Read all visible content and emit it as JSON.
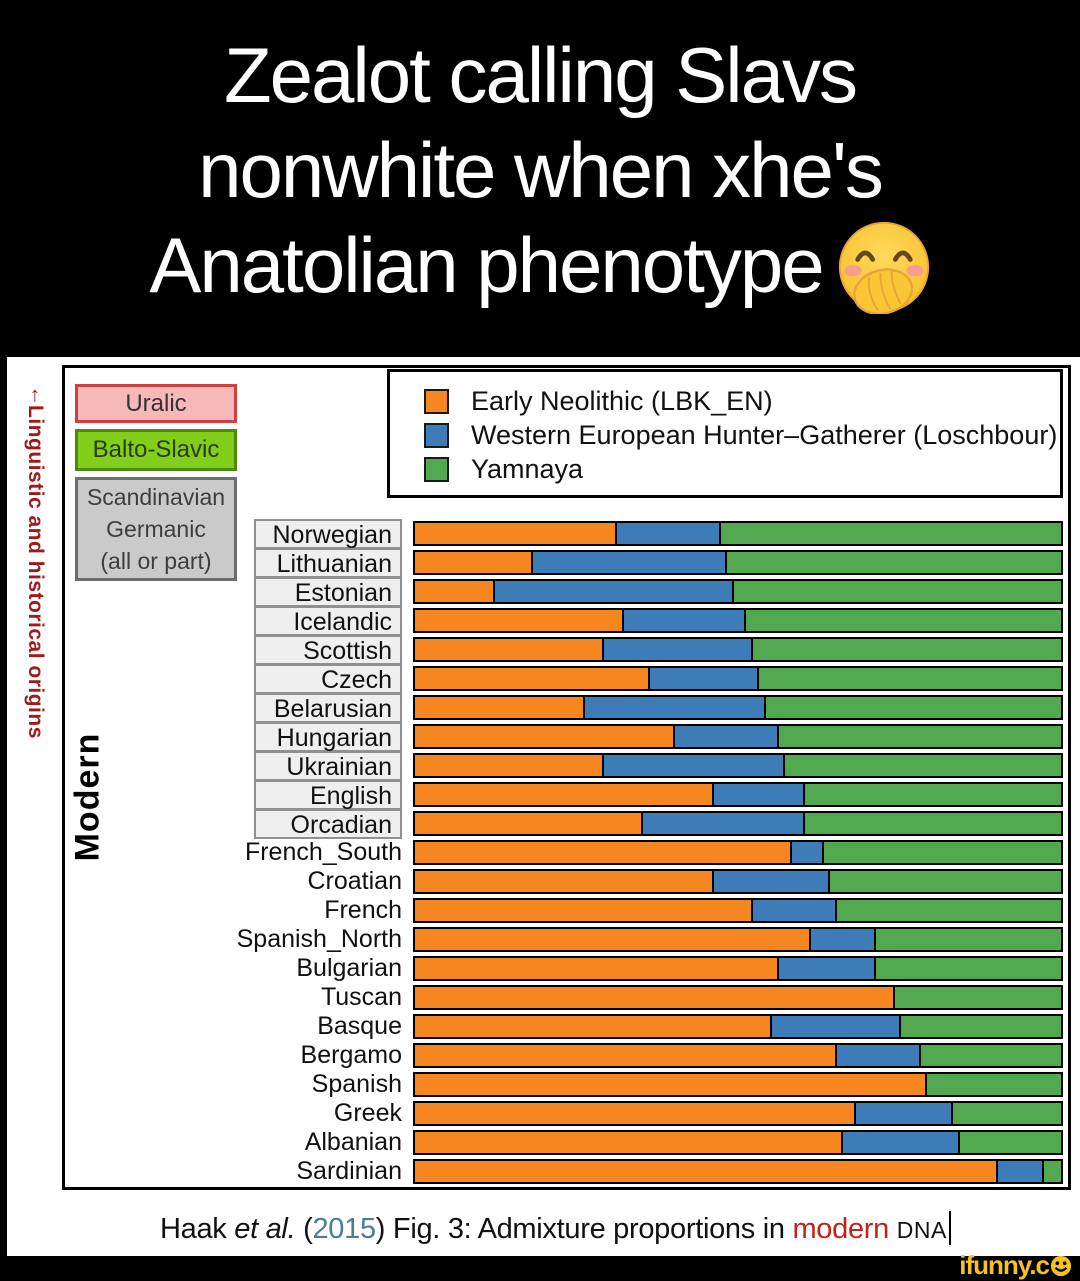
{
  "title": {
    "lines": [
      "Zealot calling Slavs",
      "nonwhite when xhe's",
      "Anatolian phenotype"
    ],
    "emoji": "face-with-hand-over-mouth"
  },
  "figure": {
    "side_label_arrow": "↑",
    "side_label": "Linguistic and historical origins",
    "era_label": "Modern",
    "category_boxes": [
      {
        "label": "Uralic"
      },
      {
        "label": "Balto-Slavic"
      },
      {
        "lines": [
          "Scandinavian",
          "Germanic",
          "(all or part)"
        ]
      }
    ],
    "legend": [
      {
        "label": "Early Neolithic (LBK_EN)",
        "color": "#F6861F"
      },
      {
        "label": "Western European Hunter–Gatherer (Loschbour)",
        "color": "#3E7CB8"
      },
      {
        "label": "Yamnaya",
        "color": "#52A84F"
      }
    ]
  },
  "chart_data": {
    "type": "bar",
    "orientation": "horizontal",
    "stacked": true,
    "xlim": [
      0,
      100
    ],
    "unit": "ancestry proportion (%)",
    "legend_position": "top-right",
    "categories": [
      "Norwegian",
      "Lithuanian",
      "Estonian",
      "Icelandic",
      "Scottish",
      "Czech",
      "Belarusian",
      "Hungarian",
      "Ukrainian",
      "English",
      "Orcadian",
      "French_South",
      "Croatian",
      "French",
      "Spanish_North",
      "Bulgarian",
      "Tuscan",
      "Basque",
      "Bergamo",
      "Spanish",
      "Greek",
      "Albanian",
      "Sardinian"
    ],
    "category_box_colors": [
      "gray",
      "green",
      "pink",
      "gray",
      "gray",
      "green",
      "green",
      "pink",
      "green",
      "gray",
      "gray",
      null,
      null,
      null,
      null,
      null,
      null,
      null,
      null,
      null,
      null,
      null,
      null
    ],
    "series": [
      {
        "name": "Early Neolithic (LBK_EN)",
        "color": "#F6861F",
        "values": [
          31,
          18,
          12,
          32,
          29,
          36,
          26,
          40,
          29,
          46,
          35,
          58,
          46,
          52,
          61,
          56,
          74,
          55,
          65,
          79,
          68,
          66,
          90
        ]
      },
      {
        "name": "Western European Hunter–Gatherer (Loschbour)",
        "color": "#3E7CB8",
        "values": [
          16,
          30,
          37,
          19,
          23,
          17,
          28,
          16,
          28,
          14,
          25,
          5,
          18,
          13,
          10,
          15,
          0,
          20,
          13,
          0,
          15,
          18,
          7
        ]
      },
      {
        "name": "Yamnaya",
        "color": "#52A84F",
        "values": [
          53,
          52,
          51,
          49,
          48,
          47,
          46,
          44,
          43,
          40,
          40,
          37,
          36,
          35,
          29,
          29,
          26,
          25,
          22,
          21,
          17,
          16,
          3
        ]
      }
    ]
  },
  "caption": {
    "parts": [
      {
        "text": "Haak "
      },
      {
        "text": "et al."
      },
      {
        "text": " ("
      },
      {
        "text": "2015"
      },
      {
        "text": ") "
      },
      {
        "text": "Fig. 3:  Admixture proportions in "
      },
      {
        "text": "modern"
      },
      {
        "text": " "
      },
      {
        "text": "DNA"
      }
    ]
  },
  "watermark": {
    "text": "ifunny.c",
    "smiley": "smiley-face-o"
  }
}
